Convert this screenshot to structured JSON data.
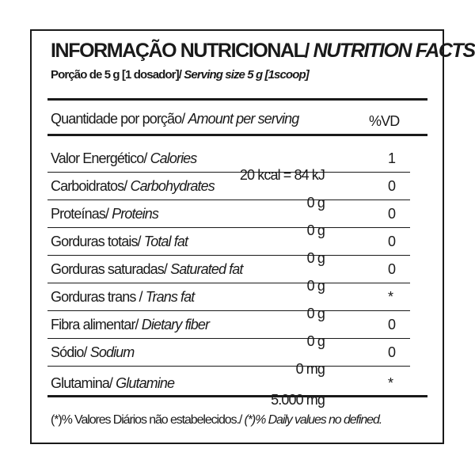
{
  "title": {
    "pt": "INFORMAÇÃO NUTRICIONAL/",
    "en": "NUTRITION FACTS"
  },
  "serving": {
    "pt": "Porção de 5 g [1 dosador]/",
    "en": "Serving size 5 g [1scoop]"
  },
  "header": {
    "pt": "Quantidade por porção/",
    "en": "Amount per serving",
    "vd": "%VD"
  },
  "rows": [
    {
      "pt": "Valor Energético/",
      "en": "Calories",
      "amount": "20 kcal = 84 kJ",
      "vd": "1"
    },
    {
      "pt": "Carboidratos/",
      "en": "Carbohydrates",
      "amount": "0 g",
      "vd": "0"
    },
    {
      "pt": "Proteínas/",
      "en": "Proteins",
      "amount": "0 g",
      "vd": "0"
    },
    {
      "pt": "Gorduras totais/",
      "en": "Total fat",
      "amount": "0 g",
      "vd": "0"
    },
    {
      "pt": "Gorduras saturadas/",
      "en": "Saturated fat",
      "amount": "0 g",
      "vd": "0"
    },
    {
      "pt": "Gorduras trans /",
      "en": "Trans fat",
      "amount": "0 g",
      "vd": "*"
    },
    {
      "pt": "Fibra alimentar/",
      "en": "Dietary fiber",
      "amount": "0 g",
      "vd": "0"
    },
    {
      "pt": "Sódio/",
      "en": "Sodium",
      "amount": "0 mg",
      "vd": "0"
    },
    {
      "pt": "Glutamina/",
      "en": "Glutamine",
      "amount": "5.000 mg",
      "vd": "*"
    }
  ],
  "footnote": {
    "pt": "(*)% Valores Diários não estabelecidos./",
    "en": "(*)% Daily values no defined."
  }
}
